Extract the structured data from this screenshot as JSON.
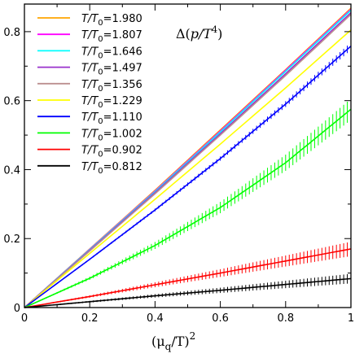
{
  "chart_data": {
    "type": "line",
    "annotation": "Δ(p/T⁴)",
    "xlabel": "(μq/T)²",
    "ylabel": "",
    "xlim": [
      0,
      1
    ],
    "ylim": [
      0,
      0.88
    ],
    "x_ticks": [
      "0",
      "0.2",
      "0.4",
      "0.6",
      "0.8",
      "1"
    ],
    "y_ticks": [
      "0",
      "0.2",
      "0.4",
      "0.6",
      "0.8"
    ],
    "grid": false,
    "legend_position": "top-left",
    "series": [
      {
        "name": "T/T0=1.980",
        "color": "#ffa500",
        "x": [
          0,
          0.2,
          0.4,
          0.6,
          0.8,
          1.0
        ],
        "values": [
          0,
          0.17,
          0.34,
          0.515,
          0.69,
          0.868
        ],
        "error": 0.0
      },
      {
        "name": "T/T0=1.807",
        "color": "#ff00ff",
        "x": [
          0,
          0.2,
          0.4,
          0.6,
          0.8,
          1.0
        ],
        "values": [
          0,
          0.169,
          0.338,
          0.512,
          0.688,
          0.865
        ],
        "error": 0.0
      },
      {
        "name": "T/T0=1.646",
        "color": "#00ffff",
        "x": [
          0,
          0.2,
          0.4,
          0.6,
          0.8,
          1.0
        ],
        "values": [
          0,
          0.168,
          0.336,
          0.509,
          0.685,
          0.862
        ],
        "error": 0.0
      },
      {
        "name": "T/T0=1.497",
        "color": "#9932cc",
        "x": [
          0,
          0.2,
          0.4,
          0.6,
          0.8,
          1.0
        ],
        "values": [
          0,
          0.166,
          0.333,
          0.504,
          0.678,
          0.855
        ],
        "error": 0.0
      },
      {
        "name": "T/T0=1.356",
        "color": "#bc8f8f",
        "x": [
          0,
          0.2,
          0.4,
          0.6,
          0.8,
          1.0
        ],
        "values": [
          0,
          0.164,
          0.33,
          0.5,
          0.673,
          0.85
        ],
        "error": 0.0
      },
      {
        "name": "T/T0=1.229",
        "color": "#ffff00",
        "x": [
          0,
          0.2,
          0.4,
          0.6,
          0.8,
          1.0
        ],
        "values": [
          0,
          0.157,
          0.314,
          0.474,
          0.637,
          0.805
        ],
        "error": 0.0
      },
      {
        "name": "T/T0=1.110",
        "color": "#0000ff",
        "x": [
          0,
          0.2,
          0.4,
          0.6,
          0.8,
          1.0
        ],
        "values": [
          0,
          0.14,
          0.283,
          0.432,
          0.59,
          0.758
        ],
        "error": 0.01
      },
      {
        "name": "T/T0=1.002",
        "color": "#00ff00",
        "x": [
          0,
          0.2,
          0.4,
          0.6,
          0.8,
          1.0
        ],
        "values": [
          0,
          0.085,
          0.18,
          0.29,
          0.42,
          0.575
        ],
        "error": 0.03
      },
      {
        "name": "T/T0=0.902",
        "color": "#ff0000",
        "x": [
          0,
          0.2,
          0.4,
          0.6,
          0.8,
          1.0
        ],
        "values": [
          0,
          0.032,
          0.066,
          0.1,
          0.135,
          0.17
        ],
        "error": 0.02
      },
      {
        "name": "T/T0=0.812",
        "color": "#000000",
        "x": [
          0,
          0.2,
          0.4,
          0.6,
          0.8,
          1.0
        ],
        "values": [
          0,
          0.017,
          0.034,
          0.05,
          0.067,
          0.084
        ],
        "error": 0.013
      }
    ]
  }
}
